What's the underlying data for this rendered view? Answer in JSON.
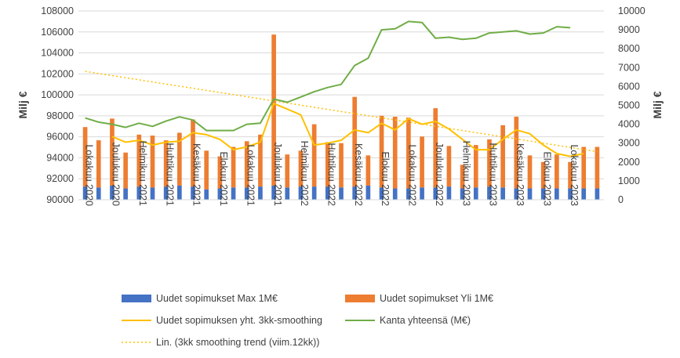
{
  "chart_data": {
    "type": "bar",
    "ylabel_left": "Milj €",
    "ylabel_right": "Milj €",
    "ylim_left": [
      90000,
      108000
    ],
    "ylim_right": [
      0,
      10000
    ],
    "left_ticks": [
      "90000",
      "92000",
      "94000",
      "96000",
      "98000",
      "100000",
      "102000",
      "104000",
      "106000",
      "108000"
    ],
    "right_ticks": [
      "0",
      "1000",
      "2000",
      "3000",
      "4000",
      "5000",
      "6000",
      "7000",
      "8000",
      "9000",
      "10000"
    ],
    "tick_labels": [
      "Lokakuu 2020",
      "Joulukuu 2020",
      "Helmikuu 2021",
      "Huhtikuu 2021",
      "Kesäkuu 2021",
      "Elokuu 2021",
      "Lokakuu 2021",
      "Joulukuu 2021",
      "Helmikuu 2022",
      "Huhtikuu 2022",
      "Kesäkuu 2022",
      "Elokuu 2022",
      "Lokakuu 2022",
      "Joulukuu 2022",
      "Helmikuu 2023",
      "Huhtikuu 2023",
      "Kesäkuu 2023",
      "Elokuu 2023",
      "Lokakuu 2023"
    ],
    "legend_placement": "bottom",
    "grid": true,
    "series": [
      {
        "name": "Uudet sopimukset Max 1M€",
        "kind": "bar",
        "axis": "right",
        "color": "#4472C4",
        "values": [
          700,
          650,
          750,
          600,
          700,
          650,
          700,
          750,
          700,
          550,
          600,
          650,
          650,
          700,
          750,
          650,
          700,
          700,
          700,
          650,
          700,
          750,
          650,
          600,
          600,
          650,
          650,
          700,
          600,
          650,
          700,
          650,
          600,
          600,
          600,
          600,
          600,
          600,
          600
        ]
      },
      {
        "name": "Uudet sopimukset Yli 1M€",
        "kind": "bar",
        "axis": "right",
        "color": "#ED7D31",
        "values": [
          3150,
          2500,
          3550,
          1900,
          2750,
          2750,
          2450,
          2800,
          3550,
          2050,
          1700,
          2150,
          2450,
          2750,
          8000,
          1750,
          1900,
          3300,
          2350,
          2350,
          4750,
          1600,
          3800,
          3800,
          3750,
          2700,
          4200,
          2150,
          1250,
          2250,
          2500,
          3300,
          3800,
          1750,
          1400,
          1800,
          1400,
          2200,
          2200
        ]
      },
      {
        "name": "Uudet sopimuksen yht. 3kk-smoothing",
        "kind": "line",
        "axis": "right",
        "color": "#FFC000",
        "values": [
          null,
          null,
          3350,
          3050,
          3150,
          2900,
          3050,
          3100,
          3550,
          3450,
          3200,
          2650,
          2800,
          3050,
          5100,
          4800,
          4500,
          2900,
          3000,
          3150,
          3700,
          3550,
          4050,
          3700,
          4300,
          4000,
          4150,
          3750,
          3200,
          2650,
          2650,
          3200,
          3700,
          3500,
          2900,
          2450,
          2300,
          2450,
          null
        ]
      },
      {
        "name": "Kanta yhteensä (M€)",
        "kind": "line",
        "axis": "left",
        "color": "#70AD47",
        "values": [
          97800,
          97400,
          97200,
          96900,
          97300,
          97000,
          97500,
          97900,
          97600,
          96600,
          96600,
          96600,
          97200,
          97300,
          99600,
          99300,
          99800,
          100300,
          100700,
          101000,
          102800,
          103500,
          106200,
          106300,
          107000,
          106900,
          105400,
          105500,
          105300,
          105400,
          105900,
          106000,
          106100,
          105800,
          105900,
          106500,
          106400,
          null,
          null
        ]
      },
      {
        "name": "Lin. (3kk smoothing trend (viim.12kk))",
        "kind": "dotted-line",
        "axis": "right",
        "color": "#FFC000",
        "start": 6800,
        "end": 2550
      }
    ]
  },
  "legend": {
    "items": [
      {
        "label": "Uudet sopimukset Max 1M€",
        "type": "box",
        "color": "#4472C4"
      },
      {
        "label": "Uudet sopimukset Yli 1M€",
        "type": "box",
        "color": "#ED7D31"
      },
      {
        "label": "Uudet sopimuksen yht. 3kk-smoothing",
        "type": "line",
        "color": "#FFC000"
      },
      {
        "label": "Kanta yhteensä (M€)",
        "type": "line",
        "color": "#70AD47"
      },
      {
        "label": "Lin. (3kk smoothing trend (viim.12kk))",
        "type": "dotted",
        "color": "#FFC000"
      }
    ]
  }
}
